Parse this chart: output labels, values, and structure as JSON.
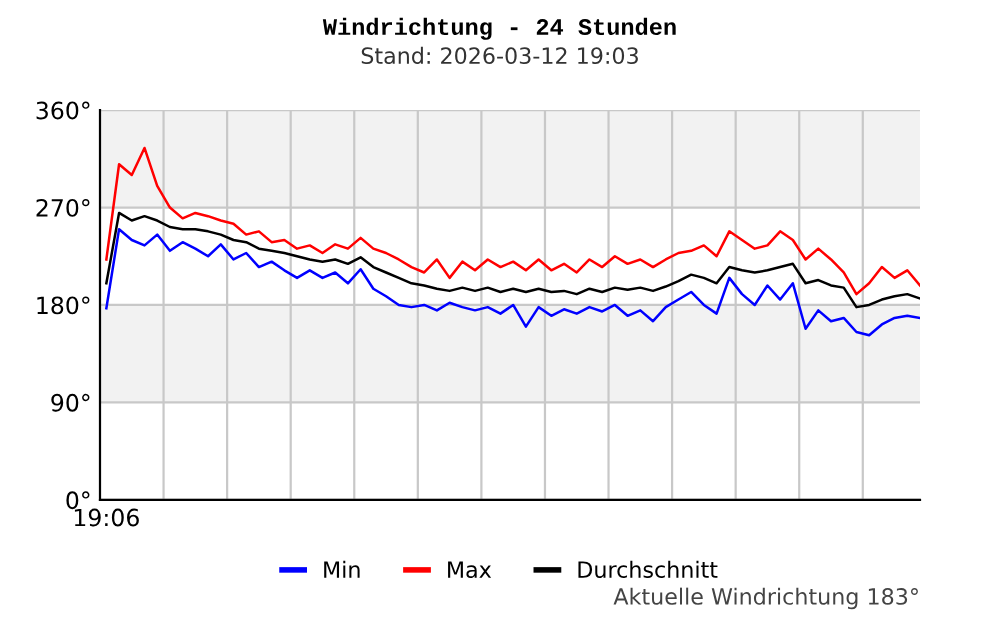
{
  "chart_data": {
    "type": "line",
    "title": "Windrichtung - 24 Stunden",
    "subtitle": "Stand: 2026-03-12 19:03",
    "annotations": [
      "Aktuelle Windrichtung 183°"
    ],
    "categories": [
      "19:06",
      null,
      null,
      null,
      null,
      null,
      null,
      null,
      null,
      null,
      null,
      null,
      null,
      null,
      null,
      null,
      null,
      null,
      null,
      null,
      null,
      null,
      null,
      null,
      null,
      null,
      null,
      null,
      null,
      null,
      null,
      null,
      null,
      null,
      null,
      null,
      null,
      null,
      null,
      null,
      null,
      null,
      null,
      null,
      null,
      null,
      null,
      null,
      null,
      null,
      null,
      null,
      null,
      null,
      null,
      null,
      null,
      null,
      null,
      null,
      null,
      null,
      null,
      null,
      null
    ],
    "series": [
      {
        "name": "Min",
        "color": "#0000ff",
        "values": [
          177,
          250,
          240,
          235,
          245,
          230,
          238,
          232,
          225,
          236,
          222,
          228,
          215,
          220,
          212,
          205,
          212,
          205,
          210,
          200,
          213,
          195,
          188,
          180,
          178,
          180,
          175,
          182,
          178,
          175,
          178,
          172,
          180,
          160,
          178,
          170,
          176,
          172,
          178,
          174,
          180,
          170,
          175,
          165,
          178,
          185,
          192,
          180,
          172,
          205,
          190,
          180,
          198,
          185,
          200,
          158,
          175,
          165,
          168,
          155,
          152,
          162,
          168,
          170,
          168
        ]
      },
      {
        "name": "Max",
        "color": "#ff0000",
        "values": [
          222,
          310,
          300,
          325,
          290,
          270,
          260,
          265,
          262,
          258,
          255,
          245,
          248,
          238,
          240,
          232,
          235,
          228,
          236,
          232,
          242,
          232,
          228,
          222,
          215,
          210,
          222,
          205,
          220,
          212,
          222,
          215,
          220,
          212,
          222,
          212,
          218,
          210,
          222,
          215,
          225,
          218,
          222,
          215,
          222,
          228,
          230,
          235,
          225,
          248,
          240,
          232,
          235,
          248,
          240,
          222,
          232,
          222,
          210,
          190,
          200,
          215,
          205,
          212,
          198
        ]
      },
      {
        "name": "Durchschnitt",
        "color": "#000000",
        "values": [
          200,
          265,
          258,
          262,
          258,
          252,
          250,
          250,
          248,
          245,
          240,
          238,
          232,
          230,
          228,
          225,
          222,
          220,
          222,
          218,
          224,
          215,
          210,
          205,
          200,
          198,
          195,
          193,
          196,
          193,
          196,
          192,
          195,
          192,
          195,
          192,
          193,
          190,
          195,
          192,
          196,
          194,
          196,
          193,
          197,
          202,
          208,
          205,
          200,
          215,
          212,
          210,
          212,
          215,
          218,
          200,
          203,
          198,
          196,
          178,
          180,
          185,
          188,
          190,
          186
        ]
      }
    ],
    "ylim": [
      0,
      360
    ],
    "yticks": [
      {
        "value": 0,
        "label": "0°"
      },
      {
        "value": 90,
        "label": "90°"
      },
      {
        "value": 180,
        "label": "180°"
      },
      {
        "value": 270,
        "label": "270°"
      },
      {
        "value": 360,
        "label": "360°"
      }
    ],
    "bands": [
      {
        "axis": "y",
        "from": 90,
        "to": 180,
        "color": "#f2f2f2"
      },
      {
        "axis": "y",
        "from": 270,
        "to": 360,
        "color": "#f2f2f2"
      }
    ],
    "grid": true,
    "legend": "bottom",
    "marker": "none",
    "line_style": "solid"
  }
}
